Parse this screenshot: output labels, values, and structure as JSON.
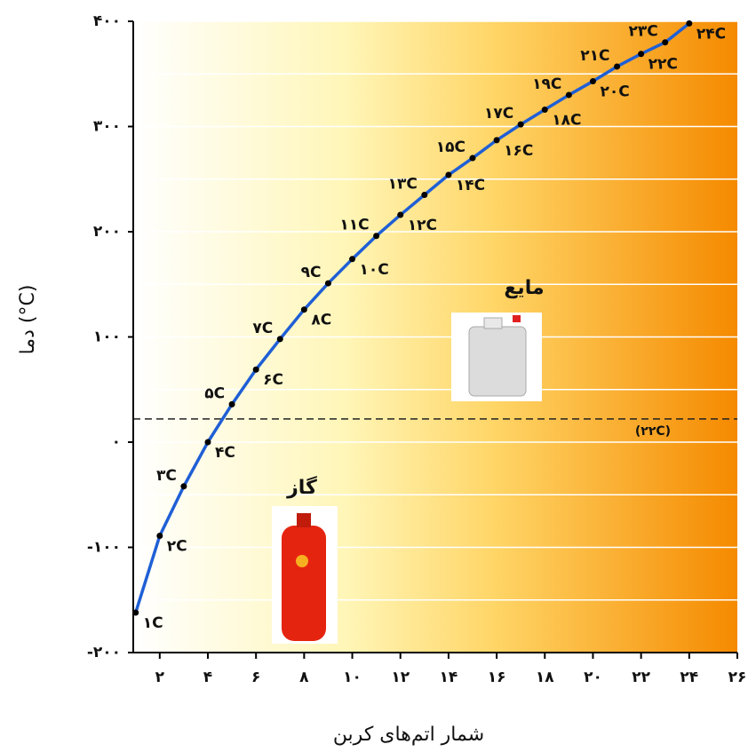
{
  "chart_data": {
    "type": "line",
    "y_label": "دما (°C)",
    "x_label": "شمار اتم‌های کربن",
    "x": [
      1,
      2,
      3,
      4,
      5,
      6,
      7,
      8,
      9,
      10,
      11,
      12,
      13,
      14,
      15,
      16,
      17,
      18,
      19,
      20,
      21,
      22,
      23,
      24
    ],
    "series": [
      {
        "color": "#1f5fd6",
        "values": [
          -162,
          -89,
          -42,
          0,
          36,
          69,
          98,
          126,
          151,
          174,
          196,
          216,
          235,
          254,
          270,
          287,
          302,
          316,
          330,
          343,
          357,
          369,
          380,
          398
        ]
      }
    ],
    "point_labels": [
      "۱C",
      "۲C",
      "۳C",
      "۴C",
      "۵C",
      "۶C",
      "۷C",
      "۸C",
      "۹C",
      "۱۰C",
      "۱۱C",
      "۱۲C",
      "۱۳C",
      "۱۴C",
      "۱۵C",
      "۱۶C",
      "۱۷C",
      "۱۸C",
      "۱۹C",
      "۲۰C",
      "۲۱C",
      "۲۲C",
      "۲۳C",
      "۲۴C"
    ],
    "xlim": [
      0.9,
      26
    ],
    "ylim": [
      -200,
      400
    ],
    "xticks": [
      {
        "value": 2,
        "label": "۲"
      },
      {
        "value": 4,
        "label": "۴"
      },
      {
        "value": 6,
        "label": "۶"
      },
      {
        "value": 8,
        "label": "۸"
      },
      {
        "value": 10,
        "label": "۱۰"
      },
      {
        "value": 12,
        "label": "۱۲"
      },
      {
        "value": 14,
        "label": "۱۴"
      },
      {
        "value": 16,
        "label": "۱۶"
      },
      {
        "value": 18,
        "label": "۱۸"
      },
      {
        "value": 20,
        "label": "۲۰"
      },
      {
        "value": 22,
        "label": "۲۲"
      },
      {
        "value": 24,
        "label": "۲۴"
      },
      {
        "value": 26,
        "label": "۲۶"
      }
    ],
    "yticks": [
      {
        "value": -200,
        "label": "-۲۰۰"
      },
      {
        "value": -100,
        "label": "-۱۰۰"
      },
      {
        "value": 0,
        "label": "۰"
      },
      {
        "value": 100,
        "label": "۱۰۰"
      },
      {
        "value": 200,
        "label": "۲۰۰"
      },
      {
        "value": 300,
        "label": "۳۰۰"
      },
      {
        "value": 400,
        "label": "۴۰۰"
      }
    ],
    "minor_grid": [
      -150,
      -50,
      50,
      150,
      250,
      350
    ],
    "grid": true,
    "reference_line": {
      "value": 22,
      "label": "(۲۲C)"
    },
    "annotations": {
      "gas": "گاز",
      "liquid": "مایع"
    }
  }
}
